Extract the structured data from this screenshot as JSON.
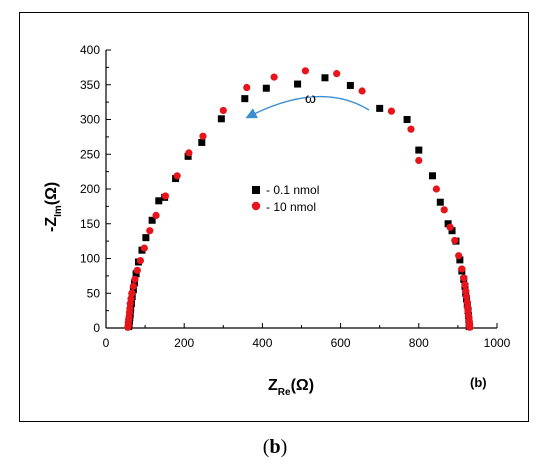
{
  "chart_data": {
    "type": "scatter",
    "x_label_main": "Z",
    "x_label_sub": "Re",
    "x_label_unit": "(Ω)",
    "y_label_prefix": "-Z",
    "y_label_sub": "Im",
    "y_label_unit": "(Ω)",
    "panel_label": "(b)",
    "xlim": [
      0,
      1000
    ],
    "ylim": [
      0,
      400
    ],
    "x_ticks": [
      "0",
      "200",
      "400",
      "600",
      "800",
      "1000"
    ],
    "y_ticks": [
      "0",
      "50",
      "100",
      "150",
      "200",
      "250",
      "300",
      "350",
      "400"
    ],
    "annotation": "ω",
    "legend_position": "center-left",
    "colors": {
      "series1": "#000000",
      "series2": "#e8141b",
      "arrow": "#3b8fd1"
    },
    "series": [
      {
        "name": "- 0.1 nmol",
        "marker": "square",
        "points": [
          [
            58,
            2
          ],
          [
            59,
            6
          ],
          [
            60,
            10
          ],
          [
            61,
            15
          ],
          [
            62,
            20
          ],
          [
            63,
            27
          ],
          [
            65,
            35
          ],
          [
            67,
            45
          ],
          [
            70,
            55
          ],
          [
            73,
            65
          ],
          [
            77,
            78
          ],
          [
            83,
            95
          ],
          [
            92,
            112
          ],
          [
            102,
            130
          ],
          [
            118,
            155
          ],
          [
            135,
            183
          ],
          [
            150,
            188
          ],
          [
            178,
            215
          ],
          [
            210,
            247
          ],
          [
            245,
            267
          ],
          [
            295,
            301
          ],
          [
            355,
            330
          ],
          [
            410,
            345
          ],
          [
            490,
            351
          ],
          [
            560,
            360
          ],
          [
            625,
            349
          ],
          [
            700,
            316
          ],
          [
            770,
            300
          ],
          [
            800,
            256
          ],
          [
            835,
            219
          ],
          [
            855,
            181
          ],
          [
            875,
            150
          ],
          [
            885,
            140
          ],
          [
            895,
            125
          ],
          [
            905,
            98
          ],
          [
            910,
            82
          ],
          [
            915,
            70
          ],
          [
            918,
            60
          ],
          [
            920,
            50
          ],
          [
            922,
            42
          ],
          [
            924,
            33
          ],
          [
            926,
            25
          ],
          [
            927,
            18
          ],
          [
            928,
            12
          ],
          [
            929,
            6
          ],
          [
            929,
            2
          ]
        ]
      },
      {
        "name": "- 10 nmol",
        "marker": "circle",
        "points": [
          [
            56,
            1
          ],
          [
            57,
            4
          ],
          [
            57,
            8
          ],
          [
            58,
            12
          ],
          [
            59,
            16
          ],
          [
            60,
            22
          ],
          [
            61,
            28
          ],
          [
            62,
            35
          ],
          [
            64,
            42
          ],
          [
            66,
            50
          ],
          [
            70,
            60
          ],
          [
            74,
            70
          ],
          [
            80,
            83
          ],
          [
            88,
            97
          ],
          [
            98,
            115
          ],
          [
            112,
            140
          ],
          [
            128,
            162
          ],
          [
            152,
            190
          ],
          [
            182,
            219
          ],
          [
            212,
            252
          ],
          [
            248,
            276
          ],
          [
            300,
            313
          ],
          [
            360,
            346
          ],
          [
            430,
            361
          ],
          [
            510,
            370
          ],
          [
            590,
            366
          ],
          [
            655,
            341
          ],
          [
            730,
            312
          ],
          [
            780,
            286
          ],
          [
            800,
            241
          ],
          [
            845,
            200
          ],
          [
            865,
            170
          ],
          [
            880,
            145
          ],
          [
            892,
            126
          ],
          [
            902,
            104
          ],
          [
            910,
            85
          ],
          [
            915,
            72
          ],
          [
            918,
            62
          ],
          [
            920,
            53
          ],
          [
            922,
            45
          ],
          [
            924,
            37
          ],
          [
            925,
            30
          ],
          [
            926,
            24
          ],
          [
            927,
            18
          ],
          [
            928,
            13
          ],
          [
            929,
            8
          ],
          [
            930,
            4
          ],
          [
            930,
            1
          ]
        ]
      }
    ]
  }
}
